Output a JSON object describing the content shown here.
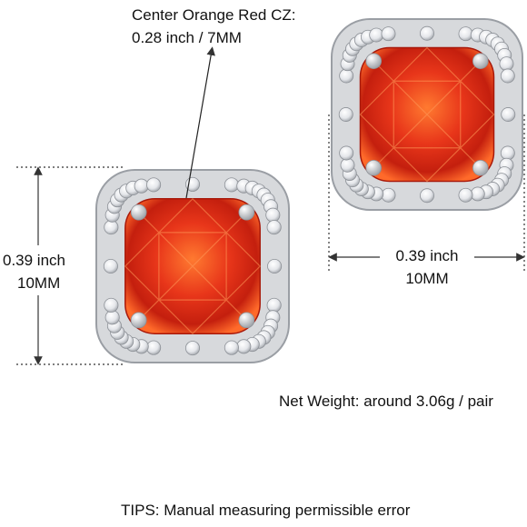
{
  "callout": {
    "title": "Center Orange Red CZ:",
    "size": "0.28 inch / 7MM"
  },
  "height_label": {
    "inch": "0.39 inch",
    "mm": "10MM"
  },
  "width_label": {
    "inch": "0.39 inch",
    "mm": "10MM"
  },
  "weight": "Net Weight: around 3.06g / pair",
  "tips": "TIPS: Manual measuring permissible error"
}
